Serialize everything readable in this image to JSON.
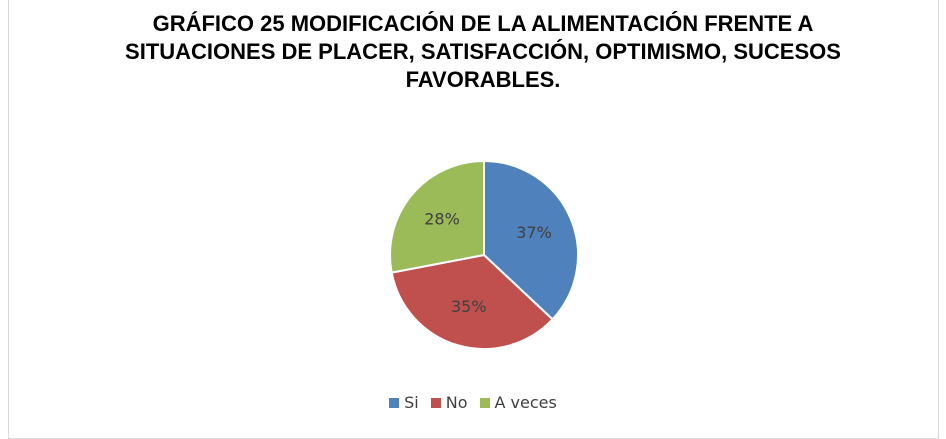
{
  "chart_data": {
    "type": "pie",
    "title": "GRÁFICO 25 MODIFICACIÓN DE LA ALIMENTACIÓN FRENTE A SITUACIONES DE PLACER, SATISFACCIÓN, OPTIMISMO, SUCESOS FAVORABLES.",
    "categories": [
      "Si",
      "No",
      "A veces"
    ],
    "values": [
      37,
      35,
      28
    ],
    "value_labels": [
      "37%",
      "35%",
      "28%"
    ],
    "colors": [
      "#4f81bd",
      "#c0504d",
      "#9bbb59"
    ],
    "legend": "bottom"
  }
}
